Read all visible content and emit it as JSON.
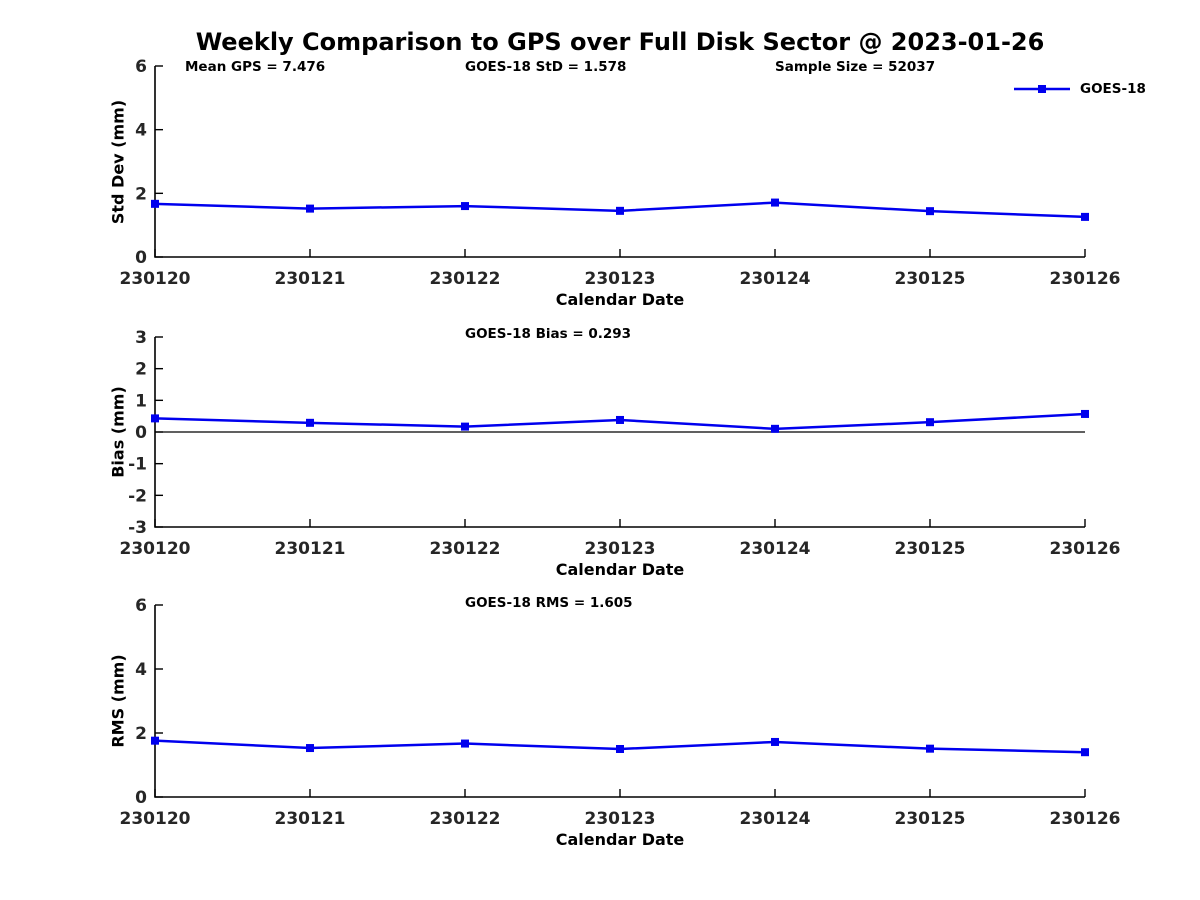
{
  "title": "Weekly Comparison to GPS over Full Disk Sector @ 2023-01-26",
  "colors": {
    "line": "#0000ee",
    "marker": "#0000ee",
    "axis": "#000000",
    "zero_line": "#000000",
    "tick_text": "#262626",
    "text": "#000000"
  },
  "legend": {
    "label": "GOES-18",
    "position": "top-right-outside"
  },
  "annotations": {
    "mean_gps": "Mean GPS = 7.476",
    "std": "GOES-18 StD = 1.578",
    "sample_size": "Sample Size = 52037"
  },
  "chart_data": [
    {
      "type": "line",
      "title": "",
      "categories": [
        "230120",
        "230121",
        "230122",
        "230123",
        "230124",
        "230125",
        "230126"
      ],
      "series": [
        {
          "name": "GOES-18",
          "values": [
            1.67,
            1.52,
            1.6,
            1.45,
            1.71,
            1.44,
            1.26
          ]
        }
      ],
      "xlabel": "Calendar Date",
      "ylabel": "Std Dev (mm)",
      "ylim": [
        0,
        6
      ],
      "yticks": [
        0,
        2,
        4,
        6
      ],
      "grid": false,
      "marker": "square",
      "zero_line": false
    },
    {
      "type": "line",
      "title": "GOES-18 Bias  = 0.293",
      "categories": [
        "230120",
        "230121",
        "230122",
        "230123",
        "230124",
        "230125",
        "230126"
      ],
      "series": [
        {
          "name": "GOES-18",
          "values": [
            0.43,
            0.29,
            0.17,
            0.38,
            0.1,
            0.31,
            0.57
          ]
        }
      ],
      "xlabel": "Calendar Date",
      "ylabel": "Bias (mm)",
      "ylim": [
        -3,
        3
      ],
      "yticks": [
        -3,
        -2,
        -1,
        0,
        1,
        2,
        3
      ],
      "grid": false,
      "marker": "square",
      "zero_line": true
    },
    {
      "type": "line",
      "title": "GOES-18 RMS  = 1.605",
      "categories": [
        "230120",
        "230121",
        "230122",
        "230123",
        "230124",
        "230125",
        "230126"
      ],
      "series": [
        {
          "name": "GOES-18",
          "values": [
            1.76,
            1.53,
            1.67,
            1.5,
            1.72,
            1.51,
            1.4
          ]
        }
      ],
      "xlabel": "Calendar Date",
      "ylabel": "RMS (mm)",
      "ylim": [
        0,
        6
      ],
      "yticks": [
        0,
        2,
        4,
        6
      ],
      "grid": false,
      "marker": "square",
      "zero_line": false
    }
  ]
}
